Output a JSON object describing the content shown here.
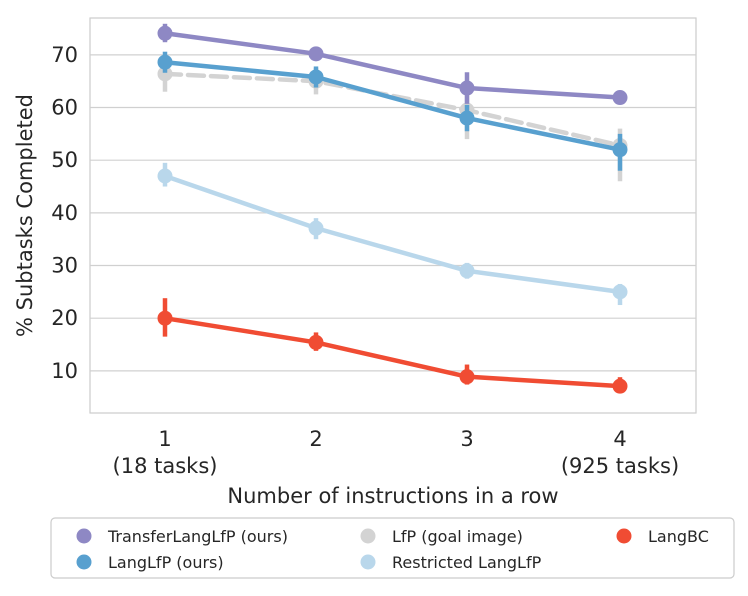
{
  "chart_data": {
    "type": "line",
    "title": "",
    "xlabel": "Number of instructions in a row",
    "ylabel": "% Subtasks Completed",
    "categories": [
      "1",
      "2",
      "3",
      "4"
    ],
    "category_sublabels": [
      "(18 tasks)",
      "",
      "",
      "(925 tasks)"
    ],
    "yticks": [
      10,
      20,
      30,
      40,
      50,
      60,
      70
    ],
    "ylim": [
      2,
      77
    ],
    "grid": "horizontal",
    "legend_position": "bottom",
    "series": [
      {
        "name": "TransferLangLfP (ours)",
        "color": "#8e88c4",
        "dashed": false,
        "values": [
          74.1,
          70.2,
          63.7,
          61.9
        ],
        "err": [
          [
            72.4,
            75.9
          ],
          [
            69.2,
            71.2
          ],
          [
            60.7,
            66.7
          ],
          [
            60.9,
            62.9
          ]
        ]
      },
      {
        "name": "LangLfP (ours)",
        "color": "#58a0cf",
        "dashed": false,
        "values": [
          68.6,
          65.8,
          58.0,
          52.0
        ],
        "err": [
          [
            66.6,
            70.6
          ],
          [
            63.8,
            67.8
          ],
          [
            55.5,
            60.5
          ],
          [
            48.0,
            55.0
          ]
        ]
      },
      {
        "name": "LfP (goal image)",
        "color": "#d3d3d3",
        "dashed": true,
        "values": [
          66.4,
          65.0,
          59.5,
          52.8
        ],
        "err": [
          [
            63.0,
            69.0
          ],
          [
            62.5,
            67.5
          ],
          [
            54.0,
            63.0
          ],
          [
            46.0,
            56.0
          ]
        ]
      },
      {
        "name": "Restricted LangLfP",
        "color": "#b9d7eb",
        "dashed": false,
        "values": [
          47.0,
          37.1,
          29.0,
          25.0
        ],
        "err": [
          [
            45.0,
            49.5
          ],
          [
            35.0,
            39.0
          ],
          [
            27.5,
            30.5
          ],
          [
            22.5,
            26.5
          ]
        ]
      },
      {
        "name": "LangBC",
        "color": "#f04c33",
        "dashed": false,
        "values": [
          20.0,
          15.4,
          8.9,
          7.1
        ],
        "err": [
          [
            16.5,
            23.8
          ],
          [
            13.8,
            17.3
          ],
          [
            7.4,
            11.2
          ],
          [
            6.1,
            8.8
          ]
        ]
      }
    ]
  }
}
